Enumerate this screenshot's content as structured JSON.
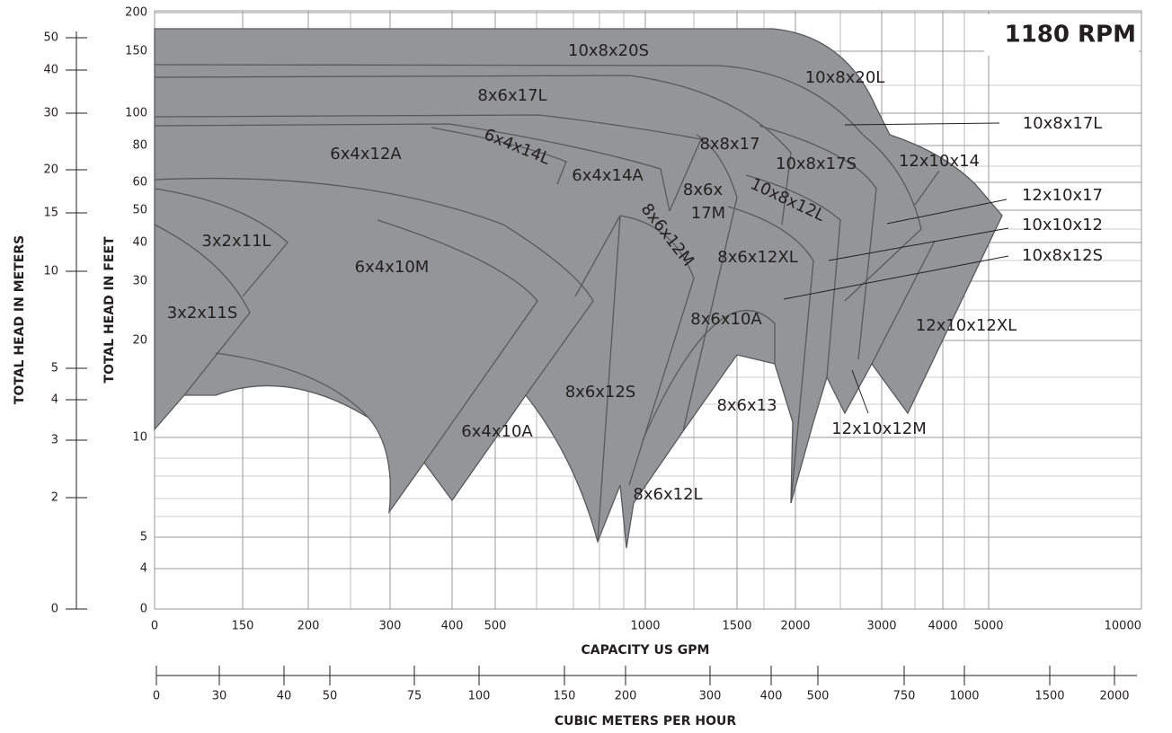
{
  "title": "1180 RPM",
  "y_left_title": "TOTAL HEAD IN METERS",
  "y_right_title": "TOTAL HEAD IN FEET",
  "x_title": "CAPACITY US GPM",
  "x2_title": "CUBIC METERS PER HOUR",
  "meters_ticks": [
    "50",
    "40",
    "30",
    "20",
    "15",
    "10",
    "5",
    "4",
    "3",
    "2",
    "0"
  ],
  "feet_ticks": [
    "200",
    "150",
    "100",
    "80",
    "60",
    "50",
    "40",
    "30",
    "20",
    "10",
    "5",
    "4",
    "0"
  ],
  "gpm_ticks": [
    "0",
    "150",
    "200",
    "300",
    "400",
    "500",
    "1000",
    "1500",
    "2000",
    "3000",
    "4000",
    "5000",
    "10000"
  ],
  "m3h_ticks": [
    "0",
    "30",
    "40",
    "50",
    "75",
    "100",
    "150",
    "200",
    "300",
    "400",
    "500",
    "750",
    "1000",
    "1500",
    "2000"
  ],
  "curves": [
    "10x8x20S",
    "10x8x20L",
    "10x8x17L",
    "8x6x17L",
    "8x8x17",
    "6x4x12A",
    "6x4x14L",
    "6x4x14A",
    "10x8x17S",
    "12x10x14",
    [
      "8x6x",
      "17M"
    ],
    "10x8x12L",
    "12x10x17",
    "10x10x12",
    "3x2x11L",
    "8x6x12M",
    "8x6x12XL",
    "10x8x12S",
    "6x4x10M",
    "3x2x11S",
    "8x6x10A",
    "12x10x12XL",
    "8x6x12S",
    "8x6x13",
    "12x10x12M",
    "6x4x10A",
    "8x6x12L"
  ]
}
